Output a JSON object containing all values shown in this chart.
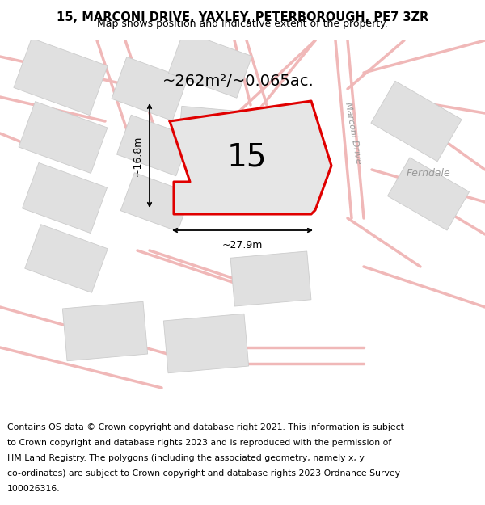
{
  "title_line1": "15, MARCONI DRIVE, YAXLEY, PETERBOROUGH, PE7 3ZR",
  "title_line2": "Map shows position and indicative extent of the property.",
  "area_label": "~262m²/~0.065ac.",
  "number_label": "15",
  "width_label": "~27.9m",
  "height_label": "~16.8m",
  "marconi_drive_label": "Marconi Drive",
  "ferndale_label": "Ferndale",
  "footer_lines": [
    "Contains OS data © Crown copyright and database right 2021. This information is subject",
    "to Crown copyright and database rights 2023 and is reproduced with the permission of",
    "HM Land Registry. The polygons (including the associated geometry, namely x, y",
    "co-ordinates) are subject to Crown copyright and database rights 2023 Ordnance Survey",
    "100026316."
  ],
  "map_bg": "#f2f2f2",
  "road_color": "#f0b8b8",
  "road_lw": 2.5,
  "plot_fill": "#e6e6e6",
  "plot_outline": "#e00000",
  "block_fill": "#e0e0e0",
  "block_edge": "#cccccc",
  "title_fontsize": 10.5,
  "subtitle_fontsize": 9.0,
  "area_fontsize": 14,
  "number_fontsize": 28,
  "dim_fontsize": 9,
  "street_fontsize": 8,
  "footer_fontsize": 7.8
}
